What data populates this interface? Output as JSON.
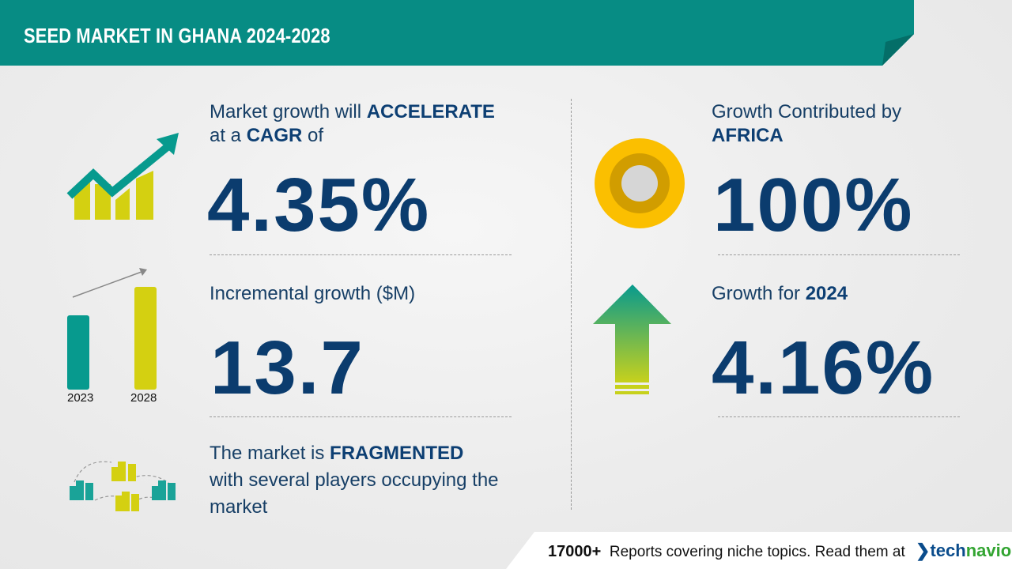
{
  "header": {
    "title": "SEED MARKET IN GHANA 2024-2028"
  },
  "cagr": {
    "line1_prefix": "Market growth will",
    "line1_bold": "ACCELERATE",
    "line2_prefix": "at a",
    "line2_bold": "CAGR",
    "line2_suffix": "of",
    "value": "4.35%"
  },
  "incremental": {
    "label": "Incremental growth ($M)",
    "value": "13.7",
    "bar_labels": [
      "2023",
      "2028"
    ]
  },
  "fragmented": {
    "prefix": "The market is",
    "bold": "FRAGMENTED",
    "line2": "with several players occupying the",
    "line3": "market"
  },
  "region": {
    "label": "Growth Contributed by",
    "region": "AFRICA",
    "value": "100%"
  },
  "yoy": {
    "prefix": "Growth for",
    "year": "2024",
    "value": "4.16%"
  },
  "footer": {
    "count": "17000+",
    "text": "Reports covering niche topics. Read them at",
    "logo_a": "tech",
    "logo_b": "navio"
  },
  "colors": {
    "teal": "#078c84",
    "yellow": "#d4d011",
    "navy": "#0b3c6e",
    "gold": "#fbbf00"
  }
}
